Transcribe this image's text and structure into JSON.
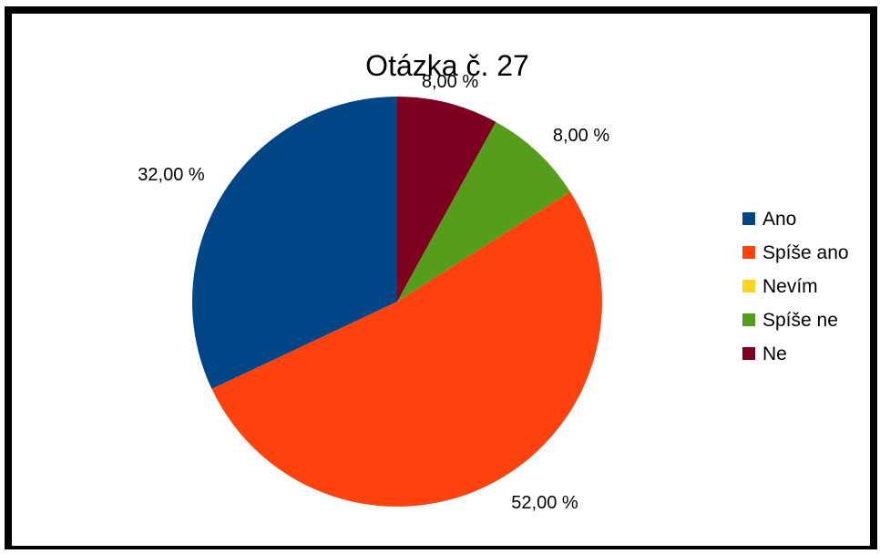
{
  "chart_data": {
    "type": "pie",
    "title": "Otázka č. 27",
    "categories": [
      "Ano",
      "Spíše ano",
      "Nevím",
      "Spíše ne",
      "Ne"
    ],
    "values": [
      32,
      52,
      0,
      8,
      8
    ],
    "data_labels": [
      "32,00 %",
      "52,00 %",
      "",
      "8,00 %",
      "8,00 %"
    ],
    "colors": [
      "#004586",
      "#ff420e",
      "#ffd320",
      "#579d1c",
      "#7e0021"
    ],
    "legend": {
      "placement": "right",
      "entries": [
        "Ano",
        "Spíše ano",
        "Nevím",
        "Spíše ne",
        "Ne"
      ]
    }
  }
}
